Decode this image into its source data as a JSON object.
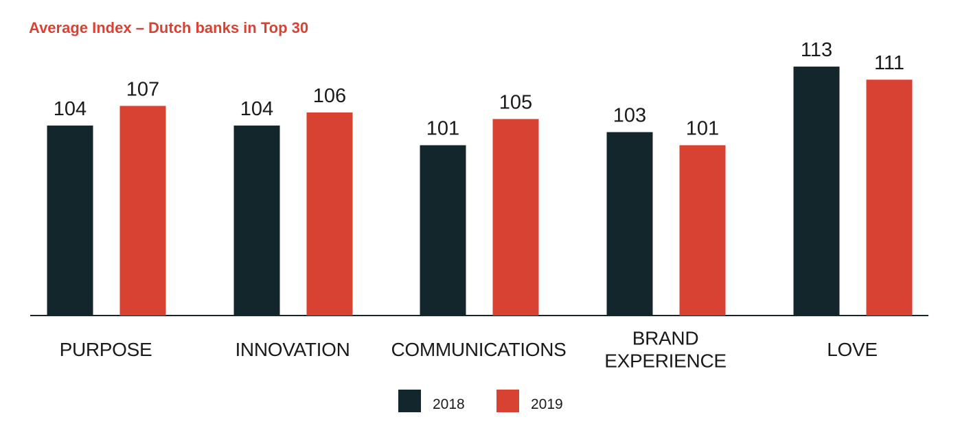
{
  "chart_data": {
    "type": "bar",
    "title": "Average Index – Dutch banks in Top 30",
    "categories": [
      "PURPOSE",
      "INNOVATION",
      "COMMUNICATIONS",
      "BRAND EXPERIENCE",
      "LOVE"
    ],
    "category_lines": [
      [
        "PURPOSE"
      ],
      [
        "INNOVATION"
      ],
      [
        "COMMUNICATIONS"
      ],
      [
        "BRAND",
        "EXPERIENCE"
      ],
      [
        "LOVE"
      ]
    ],
    "series": [
      {
        "name": "2018",
        "values": [
          104,
          104,
          101,
          103,
          113
        ],
        "color": "#13262b"
      },
      {
        "name": "2019",
        "values": [
          107,
          106,
          105,
          101,
          111
        ],
        "color": "#d84232"
      }
    ],
    "xlabel": "",
    "ylabel": "",
    "ylim": [
      75,
      118
    ],
    "grid": false,
    "legend": "bottom-center"
  },
  "colors": {
    "title": "#d84232",
    "axis": "#13262b",
    "text": "#1a1a1a"
  }
}
